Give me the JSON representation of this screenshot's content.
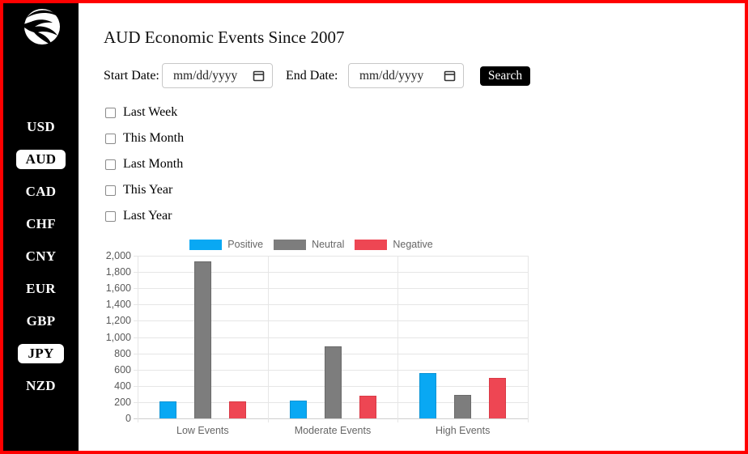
{
  "header": {
    "title": "AUD Economic Events Since 2007"
  },
  "sidebar": {
    "logo": "eagle-logo",
    "items": [
      {
        "label": "USD",
        "selected": false
      },
      {
        "label": "AUD",
        "selected": true
      },
      {
        "label": "CAD",
        "selected": false
      },
      {
        "label": "CHF",
        "selected": false
      },
      {
        "label": "CNY",
        "selected": false
      },
      {
        "label": "EUR",
        "selected": false
      },
      {
        "label": "GBP",
        "selected": false
      },
      {
        "label": "JPY",
        "selected": true
      },
      {
        "label": "NZD",
        "selected": false
      }
    ]
  },
  "filters": {
    "start_date_label": "Start Date:",
    "end_date_label": "End Date:",
    "date_placeholder": "mm/dd/yyyy",
    "search_label": "Search",
    "quick_ranges": [
      {
        "label": "Last Week",
        "checked": false
      },
      {
        "label": "This Month",
        "checked": false
      },
      {
        "label": "Last Month",
        "checked": false
      },
      {
        "label": "This Year",
        "checked": false
      },
      {
        "label": "Last Year",
        "checked": false
      }
    ]
  },
  "chart_data": {
    "type": "bar",
    "title": "",
    "categories": [
      "Low Events",
      "Moderate Events",
      "High Events"
    ],
    "series": [
      {
        "name": "Positive",
        "color": "#09a8f3",
        "border_color": "#0a93d4",
        "values": [
          210,
          220,
          560
        ]
      },
      {
        "name": "Neutral",
        "color": "#7d7d7d",
        "border_color": "#6a6a6a",
        "values": [
          1930,
          890,
          290
        ]
      },
      {
        "name": "Negative",
        "color": "#ee4653",
        "border_color": "#d93a46",
        "values": [
          210,
          280,
          500
        ]
      }
    ],
    "ylim": [
      0,
      2000
    ],
    "ytick_step": 200,
    "ytick_labels": [
      "0",
      "200",
      "400",
      "600",
      "800",
      "1,000",
      "1,200",
      "1,400",
      "1,600",
      "1,800",
      "2,000"
    ],
    "grid": true,
    "legend_position": "top",
    "axis_text_color": "#666666",
    "grid_color": "#e6e6e6"
  },
  "colors": {
    "frame_border": "#ff0000",
    "sidebar_bg": "#000000",
    "selected_item_bg": "#ffffff",
    "search_button_bg": "#000000",
    "search_button_text": "#ffffff"
  }
}
